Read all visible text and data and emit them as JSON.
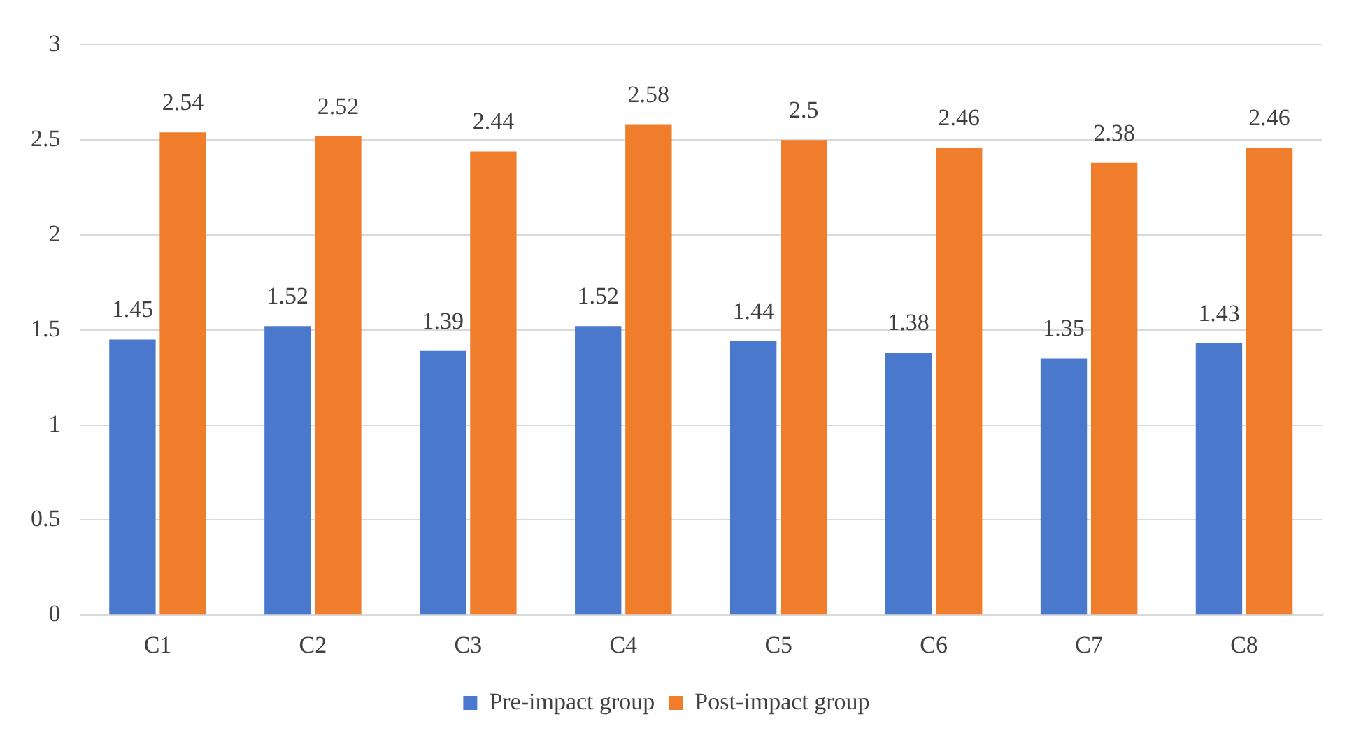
{
  "chart_data": {
    "type": "bar",
    "categories": [
      "C1",
      "C2",
      "C3",
      "C4",
      "C5",
      "C6",
      "C7",
      "C8"
    ],
    "series": [
      {
        "name": "Pre-impact group",
        "color": "#4a78cc",
        "values": [
          1.45,
          1.52,
          1.39,
          1.52,
          1.44,
          1.38,
          1.35,
          1.43
        ]
      },
      {
        "name": "Post-impact group",
        "color": "#ef7d2c",
        "values": [
          2.54,
          2.52,
          2.44,
          2.58,
          2.5,
          2.46,
          2.38,
          2.46
        ]
      }
    ],
    "ylim": [
      0,
      3
    ],
    "yticks": [
      0,
      0.5,
      1,
      1.5,
      2,
      2.5,
      3
    ],
    "grid": "y",
    "legend": "bottom",
    "data_labels": true
  }
}
